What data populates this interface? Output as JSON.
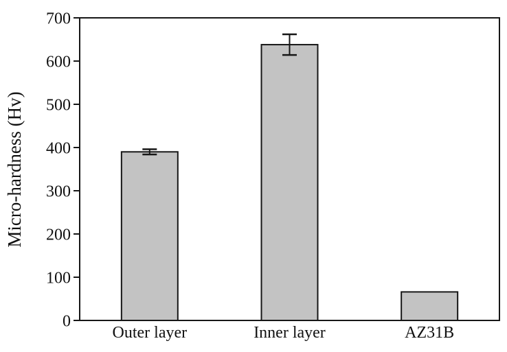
{
  "chart_data": {
    "type": "bar",
    "title": "",
    "xlabel": "",
    "ylabel": "Micro-hardness (Hv)",
    "categories": [
      "Outer layer",
      "Inner layer",
      "AZ31B"
    ],
    "values": [
      390,
      638,
      66
    ],
    "errors": [
      6,
      24,
      0
    ],
    "ylim": [
      0,
      700
    ],
    "yticks": [
      0,
      100,
      200,
      300,
      400,
      500,
      600,
      700
    ],
    "grid": false,
    "legend": "none",
    "bar_fill": "#c3c3c3",
    "bar_edge": "#161616",
    "axis_color": "#161616",
    "error_color": "#161616",
    "text_color": "#111111",
    "background": "#ffffff"
  }
}
